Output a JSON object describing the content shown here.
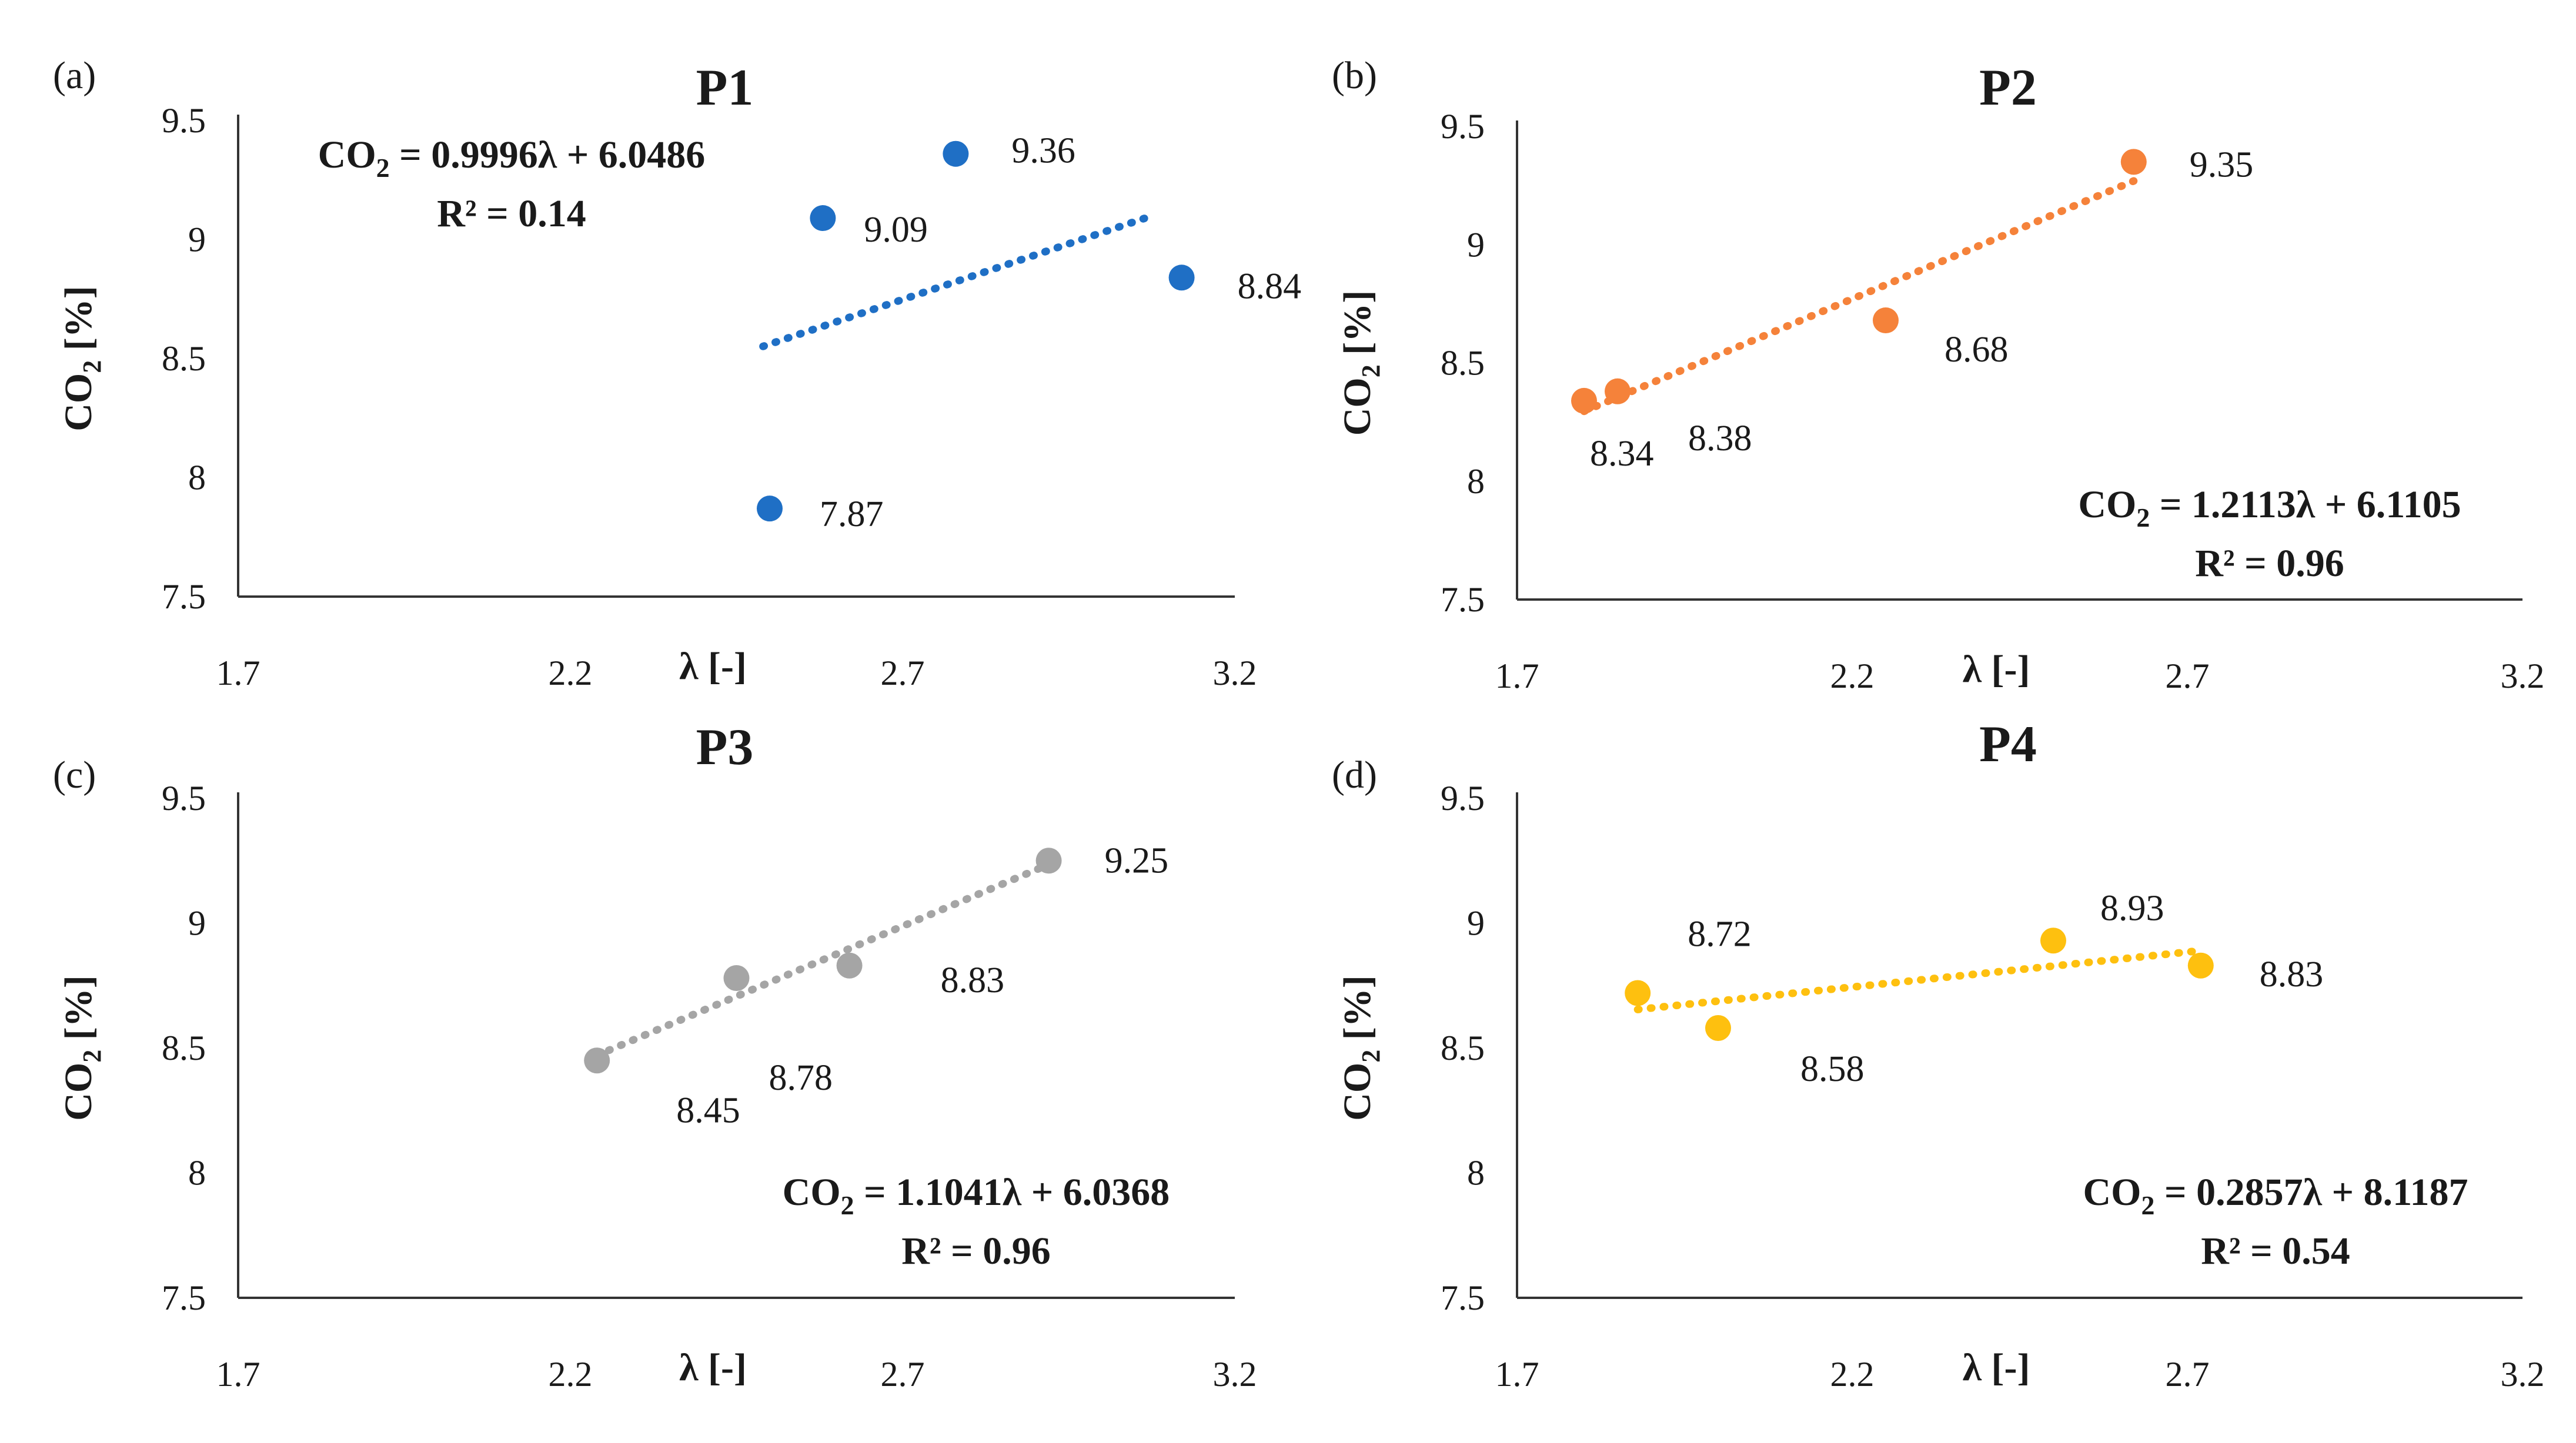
{
  "chart_data": [
    {
      "id": "a",
      "type": "scatter",
      "panel_label": "(a)",
      "title": "P1",
      "xlabel": "λ [-]",
      "ylabel": "CO",
      "ylabel_sub": "2",
      "ylabel_suffix": " [%]",
      "xlim": [
        1.7,
        3.2
      ],
      "ylim": [
        7.5,
        9.5
      ],
      "xticks": [
        "1.7",
        "2.2",
        "2.7",
        "3.2"
      ],
      "yticks": [
        "7.5",
        "8",
        "8.5",
        "9",
        "9.5"
      ],
      "color": "#1f6fc5",
      "points": [
        {
          "x": 2.5,
          "y": 7.87,
          "label": "7.87"
        },
        {
          "x": 2.58,
          "y": 9.09,
          "label": "9.09"
        },
        {
          "x": 2.78,
          "y": 9.36,
          "label": "9.36"
        },
        {
          "x": 3.12,
          "y": 8.84,
          "label": "8.84"
        }
      ],
      "trendline": {
        "x_start": 2.49,
        "x_end": 3.08
      },
      "equation": {
        "prefix": "CO",
        "sub": "2",
        "rest": " = 0.9996λ + 6.0486",
        "r2": "R² = 0.14"
      },
      "equation_position": "top-left"
    },
    {
      "id": "b",
      "type": "scatter",
      "panel_label": "(b)",
      "title": "P2",
      "xlabel": "λ [-]",
      "ylabel": "CO",
      "ylabel_sub": "2",
      "ylabel_suffix": " [%]",
      "xlim": [
        1.7,
        3.2
      ],
      "ylim": [
        7.5,
        9.5
      ],
      "xticks": [
        "1.7",
        "2.2",
        "2.7",
        "3.2"
      ],
      "yticks": [
        "7.5",
        "8",
        "8.5",
        "9",
        "9.5"
      ],
      "color": "#f5823a",
      "points": [
        {
          "x": 1.8,
          "y": 8.34,
          "label": "8.34"
        },
        {
          "x": 1.85,
          "y": 8.38,
          "label": "8.38"
        },
        {
          "x": 2.25,
          "y": 8.68,
          "label": "8.68"
        },
        {
          "x": 2.62,
          "y": 9.35,
          "label": "9.35"
        }
      ],
      "trendline": {
        "x_start": 1.8,
        "x_end": 2.62
      },
      "equation": {
        "prefix": "CO",
        "sub": "2",
        "rest": " = 1.2113λ + 6.1105",
        "r2": "R² = 0.96"
      },
      "equation_position": "bottom-right"
    },
    {
      "id": "c",
      "type": "scatter",
      "panel_label": "(c)",
      "title": "P3",
      "xlabel": "λ [-]",
      "ylabel": "CO",
      "ylabel_sub": "2",
      "ylabel_suffix": " [%]",
      "xlim": [
        1.7,
        3.2
      ],
      "ylim": [
        7.5,
        9.5
      ],
      "xticks": [
        "1.7",
        "2.2",
        "2.7",
        "3.2"
      ],
      "yticks": [
        "7.5",
        "8",
        "8.5",
        "9",
        "9.5"
      ],
      "color": "#a5a5a5",
      "points": [
        {
          "x": 2.24,
          "y": 8.45,
          "label": "8.45"
        },
        {
          "x": 2.45,
          "y": 8.78,
          "label": "8.78"
        },
        {
          "x": 2.62,
          "y": 8.83,
          "label": "8.83"
        },
        {
          "x": 2.92,
          "y": 9.25,
          "label": "9.25"
        }
      ],
      "trendline": {
        "x_start": 2.24,
        "x_end": 2.92
      },
      "equation": {
        "prefix": "CO",
        "sub": "2",
        "rest": " = 1.1041λ + 6.0368",
        "r2": "R² = 0.96"
      },
      "equation_position": "bottom-right"
    },
    {
      "id": "d",
      "type": "scatter",
      "panel_label": "(d)",
      "title": "P4",
      "xlabel": "λ [-]",
      "ylabel": "CO",
      "ylabel_sub": "2",
      "ylabel_suffix": " [%]",
      "xlim": [
        1.7,
        3.2
      ],
      "ylim": [
        7.5,
        9.5
      ],
      "xticks": [
        "1.7",
        "2.2",
        "2.7",
        "3.2"
      ],
      "yticks": [
        "7.5",
        "8",
        "8.5",
        "9",
        "9.5"
      ],
      "color": "#fec00f",
      "points": [
        {
          "x": 1.88,
          "y": 8.72,
          "label": "8.72"
        },
        {
          "x": 2.0,
          "y": 8.58,
          "label": "8.58"
        },
        {
          "x": 2.5,
          "y": 8.93,
          "label": "8.93"
        },
        {
          "x": 2.72,
          "y": 8.83,
          "label": "8.83"
        }
      ],
      "trendline": {
        "x_start": 1.88,
        "x_end": 2.72
      },
      "equation": {
        "prefix": "CO",
        "sub": "2",
        "rest": " = 0.2857λ + 8.1187",
        "r2": "R² = 0.54"
      },
      "equation_position": "bottom-right"
    }
  ]
}
